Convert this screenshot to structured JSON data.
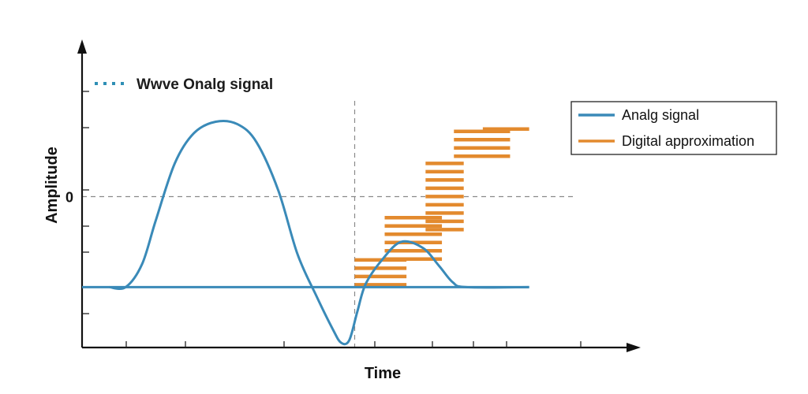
{
  "caption": {
    "text": "Wwve Onalg signal",
    "marker_color": "#2f8fb5"
  },
  "chart_data": {
    "type": "line",
    "xlabel": "Time",
    "ylabel": "Amplitude",
    "y_tick_labels": [
      "0"
    ],
    "xlim": [
      0,
      10
    ],
    "ylim": [
      -2.5,
      2.5
    ],
    "grid": false,
    "legend_placement": "top-right",
    "reference_lines": {
      "horizontal_y": 0,
      "vertical_x": 5
    },
    "series": [
      {
        "name": "Analg signal",
        "color": "#3a8ab8",
        "points": [
          [
            0.5,
            -1.5
          ],
          [
            0.8,
            -1.5
          ],
          [
            1.1,
            -1.12
          ],
          [
            1.35,
            -0.4
          ],
          [
            1.7,
            0.55
          ],
          [
            2.05,
            1.05
          ],
          [
            2.45,
            1.24
          ],
          [
            2.85,
            1.2
          ],
          [
            3.2,
            0.9
          ],
          [
            3.6,
            0.1
          ],
          [
            3.95,
            -0.95
          ],
          [
            4.3,
            -1.65
          ],
          [
            4.6,
            -2.2
          ],
          [
            4.75,
            -2.42
          ],
          [
            4.9,
            -2.38
          ],
          [
            5.05,
            -1.9
          ],
          [
            5.2,
            -1.45
          ],
          [
            5.5,
            -1.05
          ],
          [
            5.85,
            -0.75
          ],
          [
            6.25,
            -0.85
          ],
          [
            6.55,
            -1.15
          ],
          [
            6.8,
            -1.42
          ],
          [
            7.05,
            -1.5
          ],
          [
            8.2,
            -1.5
          ]
        ]
      },
      {
        "name": "Analg signal baseline",
        "color": "#3a8ab8",
        "points": [
          [
            0,
            -1.5
          ],
          [
            8.2,
            -1.5
          ]
        ]
      },
      {
        "name": "Digital approximation",
        "color": "#e38a2e",
        "steps": [
          {
            "x0": 5.0,
            "x1": 5.95,
            "y0": -1.5,
            "y1": -1.05
          },
          {
            "x0": 5.55,
            "x1": 6.6,
            "y0": -1.1,
            "y1": -0.35
          },
          {
            "x0": 6.3,
            "x1": 7.0,
            "y0": -0.6,
            "y1": 0.55
          },
          {
            "x0": 6.82,
            "x1": 7.85,
            "y0": 0.55,
            "y1": 1.08
          },
          {
            "x0": 7.35,
            "x1": 8.2,
            "y0": 1.08,
            "y1": 1.12
          }
        ]
      }
    ],
    "legend": [
      {
        "label": "Analg signal",
        "color": "#3a8ab8"
      },
      {
        "label": "Digital approximation",
        "color": "#e38a2e"
      }
    ]
  }
}
